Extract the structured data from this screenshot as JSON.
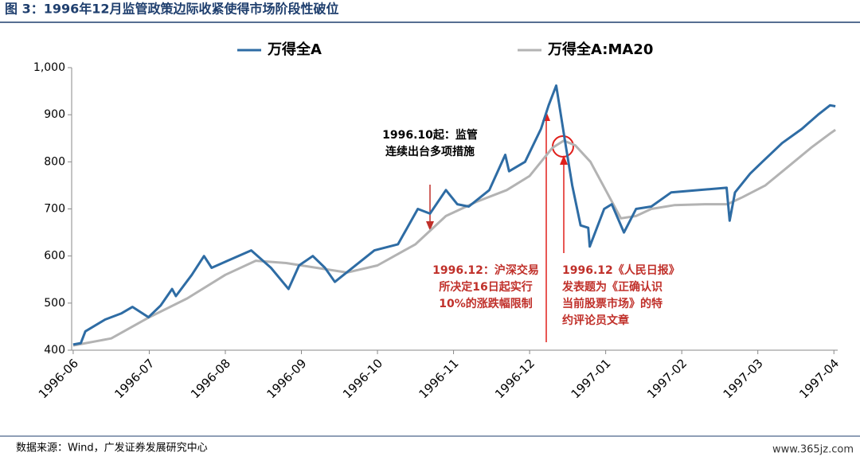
{
  "title": "图 3：1996年12月监管政策边际收紧使得市场阶段性破位",
  "source": "数据来源：Wind，广发证券发展研究中心",
  "watermark": "www.365jz.com",
  "chart_data": {
    "type": "line",
    "xlim": [
      -0.02,
      10.05
    ],
    "xticks": [
      {
        "value": 0,
        "label": "1996-06"
      },
      {
        "value": 1,
        "label": "1996-07"
      },
      {
        "value": 2,
        "label": "1996-08"
      },
      {
        "value": 3,
        "label": "1996-09"
      },
      {
        "value": 4,
        "label": "1996-10"
      },
      {
        "value": 5,
        "label": "1996-11"
      },
      {
        "value": 6,
        "label": "1996-12"
      },
      {
        "value": 7,
        "label": "1997-01"
      },
      {
        "value": 8,
        "label": "1997-02"
      },
      {
        "value": 9,
        "label": "1997-03"
      },
      {
        "value": 10,
        "label": "1997-04"
      }
    ],
    "ylim": [
      400,
      1000
    ],
    "yticks": [
      400,
      500,
      600,
      700,
      800,
      900,
      {
        "value": 1000,
        "label": "1,000"
      }
    ],
    "series": [
      {
        "name": "万得全A",
        "color": "#2e6ca4",
        "x": [
          0,
          0.1,
          0.16,
          0.42,
          0.63,
          0.78,
          0.99,
          1.15,
          1.3,
          1.35,
          1.56,
          1.72,
          1.82,
          2.03,
          2.34,
          2.6,
          2.83,
          2.97,
          3.15,
          3.31,
          3.44,
          3.96,
          4.27,
          4.53,
          4.69,
          4.9,
          5.05,
          5.2,
          5.47,
          5.68,
          5.73,
          5.94,
          6.15,
          6.25,
          6.35,
          6.46,
          6.56,
          6.67,
          6.77,
          6.79,
          6.98,
          7.08,
          7.24,
          7.4,
          7.6,
          7.86,
          8.23,
          8.59,
          8.63,
          8.7,
          8.9,
          9.06,
          9.32,
          9.58,
          9.79,
          9.95,
          10.02
        ],
        "values": [
          412,
          415,
          440,
          465,
          478,
          492,
          470,
          495,
          530,
          515,
          560,
          600,
          575,
          590,
          612,
          575,
          530,
          580,
          600,
          575,
          545,
          612,
          625,
          700,
          690,
          740,
          710,
          705,
          740,
          815,
          780,
          800,
          870,
          920,
          962,
          850,
          750,
          665,
          660,
          620,
          700,
          710,
          650,
          700,
          705,
          735,
          740,
          745,
          675,
          735,
          775,
          800,
          840,
          870,
          900,
          920,
          918
        ]
      },
      {
        "name": "万得全A:MA20",
        "color": "#b3b3b3",
        "x": [
          0,
          0.5,
          1.0,
          1.5,
          2.0,
          2.4,
          2.8,
          3.2,
          3.6,
          4.0,
          4.5,
          4.9,
          5.3,
          5.7,
          6.0,
          6.3,
          6.45,
          6.6,
          6.8,
          7.0,
          7.2,
          7.4,
          7.6,
          7.9,
          8.3,
          8.6,
          8.8,
          9.1,
          9.4,
          9.7,
          9.95,
          10.02
        ],
        "values": [
          410,
          425,
          470,
          510,
          560,
          590,
          585,
          575,
          565,
          580,
          625,
          685,
          715,
          740,
          770,
          830,
          845,
          835,
          800,
          740,
          680,
          685,
          700,
          708,
          710,
          710,
          725,
          750,
          790,
          830,
          860,
          868
        ]
      }
    ],
    "annotations": [
      {
        "lines": [
          "1996.10起：监管",
          "连续出台多项措施"
        ],
        "color": "#000000"
      },
      {
        "lines": [
          "1996.12：沪深交易",
          "所决定16日起实行",
          "10%的涨跌幅限制"
        ],
        "color": "#c0302a"
      },
      {
        "lines": [
          "1996.12《人民日报》",
          "发表题为《正确认识",
          "当前股票市场》的特",
          "约评论员文章"
        ],
        "color": "#c0302a"
      }
    ]
  }
}
